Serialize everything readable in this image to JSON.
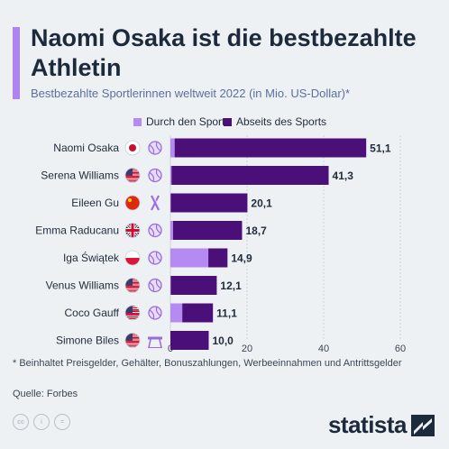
{
  "title": "Naomi Osaka ist die bestbezahlte Athletin",
  "subtitle": "Bestbezahlte Sportlerinnen weltweit 2022 (in Mio. US-Dollar)*",
  "footnote": "* Beinhaltet Preisgelder, Gehälter, Bonuszahlungen, Werbeeinnahmen und Antrittsgelder",
  "source": "Quelle: Forbes",
  "brand": "statista",
  "colors": {
    "on_field": "#b58af2",
    "off_field": "#4b0f7a",
    "accent": "#b084f0",
    "title": "#1c2a3c"
  },
  "chart_data": {
    "type": "bar",
    "orientation": "horizontal",
    "stacked": true,
    "categories": [
      "Naomi Osaka",
      "Serena Williams",
      "Eileen Gu",
      "Emma Raducanu",
      "Iga Świątek",
      "Venus Williams",
      "Coco Gauff",
      "Simone Biles"
    ],
    "flags": [
      "japan-flag-icon",
      "usa-flag-icon",
      "china-flag-icon",
      "uk-flag-icon",
      "poland-flag-icon",
      "usa-flag-icon",
      "usa-flag-icon",
      "usa-flag-icon"
    ],
    "sport_icons": [
      "tennis-ball-icon",
      "tennis-ball-icon",
      "ski-icon",
      "tennis-ball-icon",
      "tennis-ball-icon",
      "tennis-ball-icon",
      "tennis-ball-icon",
      "balance-beam-icon"
    ],
    "series": [
      {
        "name": "Durch den Sport",
        "values": [
          1.1,
          0.3,
          0.1,
          0.7,
          9.9,
          0.1,
          3.1,
          0.0
        ]
      },
      {
        "name": "Abseits des Sports",
        "values": [
          50.0,
          41.0,
          20.0,
          18.0,
          5.0,
          12.0,
          8.0,
          10.0
        ]
      }
    ],
    "totals": [
      "51,1",
      "41,3",
      "20,1",
      "18,7",
      "14,9",
      "12,1",
      "11,1",
      "10,0"
    ],
    "xticks": [
      "0",
      "20",
      "40",
      "60"
    ],
    "xlim": [
      0,
      60
    ],
    "legend_position": "top",
    "grid": true
  }
}
